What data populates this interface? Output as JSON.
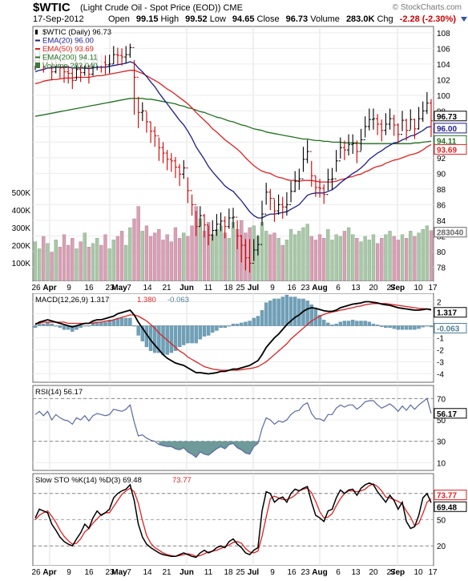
{
  "header": {
    "symbol": "$WTIC",
    "name": "(Light Crude Oil - Spot Price (EOD)) CME",
    "watermark": "© StockCharts.com",
    "date": "17-Sep-2012",
    "open_label": "Open",
    "open": "99.15",
    "high_label": "High",
    "high": "99.52",
    "low_label": "Low",
    "low": "94.65",
    "close_label": "Close",
    "close": "96.73",
    "volume_label": "Volume",
    "volume": "283.0K",
    "chg_label": "Chg",
    "chg": "-2.28 (-2.30%)"
  },
  "colors": {
    "up_bar": "#000000",
    "down_bar": "#cc0000",
    "ema20": "#1c1c8c",
    "ema50": "#dd2222",
    "ema200": "#207020",
    "vol_up": "#a8c8a8",
    "vol_down": "#d8a0b4",
    "macd": "#000000",
    "signal": "#dd2222",
    "hist": "#6fa0b8",
    "rsi": "#5a6aa0",
    "rsi_fill": "#6e9a9a",
    "sto_k": "#000000",
    "sto_d": "#dd2222"
  },
  "x_axis": {
    "labels": [
      "26",
      "Apr",
      "9",
      "16",
      "23",
      "May",
      "7",
      "14",
      "21",
      "Jun",
      "11",
      "18",
      "25",
      "Jul",
      "9",
      "16",
      "23",
      "Aug",
      "6",
      "13",
      "20",
      "27",
      "Sep",
      "10",
      "17"
    ]
  },
  "chart_data": [
    {
      "type": "ohlc",
      "title": "$WTIC (Daily) 96.73",
      "legend": [
        "$WTIC (Daily) 96.73",
        "EMA(20) 96.00",
        "EMA(50) 93.69",
        "EMA(200) 94.11",
        "Volume 283,040"
      ],
      "ylim": [
        76.5,
        108.5
      ],
      "y_ticks": [
        78,
        80,
        82,
        84,
        86,
        88,
        90,
        92,
        94,
        96,
        98,
        100,
        102,
        104,
        106,
        108
      ],
      "y_tick_labels": [
        "78",
        "80",
        "82",
        "84",
        "86",
        "88",
        "90",
        "92",
        "94",
        "96",
        "98",
        "100",
        "102",
        "104",
        "106",
        "108"
      ],
      "price_close": [
        104.4,
        105.1,
        104.2,
        105.3,
        103.0,
        104.1,
        103.5,
        103.0,
        102.8,
        101.9,
        103.3,
        102.9,
        103.8,
        102.7,
        103.9,
        104.4,
        104.2,
        103.9,
        104.0,
        105.2,
        105.1,
        104.9,
        105.2,
        106.1,
        102.3,
        97.8,
        98.0,
        96.6,
        95.4,
        94.8,
        93.3,
        92.6,
        91.8,
        91.6,
        90.8,
        89.9,
        90.7,
        87.8,
        86.0,
        83.2,
        84.6,
        83.4,
        82.1,
        82.7,
        83.5,
        83.9,
        83.2,
        84.3,
        84.4,
        82.0,
        80.8,
        79.2,
        78.5,
        80.2,
        80.9,
        84.8,
        87.6,
        86.8,
        85.2,
        86.0,
        85.7,
        86.0,
        87.7,
        89.0,
        89.3,
        91.8,
        92.8,
        89.7,
        88.2,
        88.1,
        87.3,
        89.2,
        89.3,
        91.6,
        93.3,
        93.0,
        93.7,
        93.8,
        92.8,
        94.3,
        96.0,
        96.9,
        97.0,
        96.3,
        95.5,
        96.3,
        97.0,
        96.2,
        95.0,
        96.8,
        95.5,
        96.9,
        95.7,
        97.0,
        98.0,
        99.0,
        96.73
      ],
      "price_high": [
        105.4,
        106.0,
        105.5,
        106.3,
        104.7,
        105.2,
        104.8,
        104.3,
        104.0,
        103.5,
        104.4,
        104.0,
        105.0,
        103.9,
        105.0,
        105.3,
        105.3,
        105.1,
        105.2,
        106.3,
        106.1,
        106.0,
        106.3,
        106.6,
        104.5,
        99.8,
        99.1,
        97.9,
        96.6,
        96.0,
        94.6,
        94.0,
        93.0,
        92.6,
        92.1,
        91.2,
        91.7,
        89.5,
        87.3,
        85.2,
        85.8,
        84.8,
        83.3,
        84.0,
        84.8,
        85.0,
        84.5,
        85.5,
        85.6,
        84.0,
        82.1,
        81.6,
        81.6,
        81.6,
        82.1,
        86.5,
        88.8,
        88.0,
        86.7,
        87.3,
        87.0,
        87.6,
        89.0,
        90.3,
        90.6,
        93.4,
        94.3,
        91.6,
        89.7,
        89.3,
        88.6,
        90.6,
        90.7,
        93.0,
        94.6,
        94.2,
        95.0,
        95.0,
        94.2,
        95.7,
        97.3,
        98.3,
        98.3,
        97.6,
        96.9,
        97.7,
        98.3,
        97.5,
        96.4,
        98.0,
        97.0,
        98.2,
        97.0,
        98.5,
        99.2,
        100.4,
        99.52
      ],
      "price_low": [
        103.2,
        104.0,
        102.9,
        104.0,
        101.9,
        102.8,
        102.2,
        101.6,
        101.5,
        100.8,
        102.0,
        101.7,
        102.5,
        101.5,
        102.5,
        103.2,
        102.9,
        102.7,
        102.8,
        104.0,
        103.9,
        103.8,
        104.1,
        104.8,
        97.5,
        95.8,
        96.7,
        95.2,
        93.9,
        93.4,
        91.6,
        91.3,
        90.4,
        90.2,
        89.4,
        88.4,
        89.3,
        86.2,
        84.6,
        82.0,
        83.2,
        81.8,
        80.8,
        81.4,
        82.0,
        82.6,
        81.7,
        82.9,
        83.0,
        80.3,
        78.6,
        77.6,
        77.3,
        78.8,
        79.5,
        83.3,
        86.0,
        85.3,
        83.8,
        84.7,
        84.2,
        84.6,
        86.3,
        87.6,
        87.9,
        90.2,
        91.3,
        88.3,
        87.0,
        86.9,
        86.1,
        87.8,
        87.9,
        90.2,
        91.9,
        91.7,
        92.3,
        92.5,
        91.3,
        92.9,
        94.6,
        95.5,
        95.6,
        94.9,
        94.1,
        94.9,
        95.6,
        94.8,
        93.8,
        95.4,
        94.2,
        95.6,
        94.4,
        95.6,
        96.6,
        97.6,
        94.65
      ],
      "ema20": [
        103.0,
        103.2,
        103.3,
        103.5,
        103.5,
        103.6,
        103.6,
        103.6,
        103.6,
        103.5,
        103.5,
        103.5,
        103.5,
        103.4,
        103.5,
        103.6,
        103.6,
        103.6,
        103.7,
        103.8,
        103.9,
        104.0,
        104.1,
        104.3,
        104.1,
        103.5,
        103.0,
        102.4,
        101.7,
        101.1,
        100.3,
        99.6,
        98.9,
        98.2,
        97.5,
        96.8,
        96.2,
        95.4,
        94.5,
        93.4,
        92.6,
        91.8,
        90.9,
        90.2,
        89.6,
        89.0,
        88.4,
        88.0,
        87.7,
        87.1,
        86.5,
        85.8,
        85.1,
        84.6,
        84.3,
        84.3,
        84.6,
        84.8,
        84.8,
        84.9,
        85.0,
        85.1,
        85.4,
        85.7,
        86.0,
        86.6,
        87.2,
        87.4,
        87.5,
        87.5,
        87.5,
        87.7,
        87.9,
        88.3,
        88.8,
        89.2,
        89.6,
        90.0,
        90.3,
        90.7,
        91.2,
        91.8,
        92.2,
        92.6,
        92.9,
        93.3,
        93.6,
        93.9,
        94.0,
        94.3,
        94.5,
        94.8,
        94.9,
        95.2,
        95.5,
        95.9,
        96.0
      ],
      "ema50": [
        101.5,
        101.6,
        101.8,
        101.9,
        102.0,
        102.0,
        102.1,
        102.2,
        102.2,
        102.2,
        102.3,
        102.3,
        102.3,
        102.3,
        102.4,
        102.5,
        102.5,
        102.6,
        102.7,
        102.8,
        102.9,
        103.0,
        103.1,
        103.2,
        103.2,
        103.0,
        102.8,
        102.5,
        102.2,
        101.9,
        101.6,
        101.2,
        100.8,
        100.5,
        100.1,
        99.7,
        99.3,
        98.9,
        98.4,
        97.8,
        97.3,
        96.8,
        96.3,
        95.7,
        95.3,
        94.8,
        94.3,
        93.9,
        93.5,
        93.1,
        92.6,
        92.0,
        91.5,
        91.0,
        90.6,
        90.3,
        90.1,
        90.0,
        89.7,
        89.5,
        89.4,
        89.2,
        89.1,
        89.1,
        89.0,
        89.1,
        89.1,
        89.1,
        89.0,
        88.9,
        88.9,
        88.9,
        88.9,
        89.0,
        89.2,
        89.3,
        89.5,
        89.6,
        89.8,
        89.9,
        90.2,
        90.4,
        90.7,
        90.9,
        91.0,
        91.3,
        91.5,
        91.7,
        91.8,
        92.0,
        92.2,
        92.4,
        92.5,
        92.7,
        93.0,
        93.4,
        93.69
      ],
      "ema200": [
        97.3,
        97.4,
        97.5,
        97.6,
        97.7,
        97.8,
        97.9,
        98.0,
        98.1,
        98.2,
        98.3,
        98.4,
        98.5,
        98.6,
        98.7,
        98.8,
        98.9,
        99.0,
        99.1,
        99.2,
        99.3,
        99.4,
        99.5,
        99.6,
        99.6,
        99.6,
        99.6,
        99.5,
        99.5,
        99.4,
        99.3,
        99.2,
        99.1,
        99.0,
        98.9,
        98.7,
        98.6,
        98.4,
        98.3,
        98.1,
        97.9,
        97.8,
        97.6,
        97.4,
        97.2,
        97.1,
        96.9,
        96.7,
        96.6,
        96.4,
        96.2,
        96.1,
        95.9,
        95.7,
        95.6,
        95.5,
        95.3,
        95.2,
        95.1,
        95.0,
        94.9,
        94.8,
        94.7,
        94.6,
        94.5,
        94.4,
        94.4,
        94.3,
        94.2,
        94.2,
        94.1,
        94.1,
        94.0,
        94.0,
        94.0,
        93.9,
        93.9,
        93.9,
        93.9,
        93.8,
        93.8,
        93.8,
        93.8,
        93.8,
        93.8,
        93.8,
        93.8,
        93.8,
        93.8,
        93.8,
        93.8,
        93.8,
        93.9,
        93.9,
        94.0,
        94.05,
        94.11
      ],
      "volume_k": [
        220,
        180,
        250,
        210,
        160,
        230,
        190,
        260,
        200,
        240,
        180,
        220,
        270,
        190,
        210,
        240,
        200,
        260,
        180,
        230,
        250,
        280,
        200,
        300,
        350,
        420,
        280,
        310,
        250,
        270,
        290,
        230,
        260,
        220,
        300,
        240,
        270,
        250,
        310,
        420,
        350,
        280,
        330,
        260,
        290,
        310,
        270,
        240,
        330,
        290,
        340,
        270,
        300,
        310,
        250,
        330,
        280,
        260,
        270,
        240,
        200,
        230,
        290,
        260,
        280,
        300,
        320,
        250,
        230,
        260,
        240,
        290,
        230,
        260,
        250,
        280,
        300,
        260,
        240,
        220,
        250,
        230,
        260,
        210,
        240,
        260,
        280,
        250,
        230,
        260,
        240,
        280,
        250,
        270,
        290,
        310,
        283
      ],
      "volume_ticks": [
        100,
        200,
        300,
        400,
        500
      ],
      "volume_tick_labels": [
        "100K",
        "200K",
        "300K",
        "400K",
        "500K"
      ]
    },
    {
      "type": "line",
      "title": "MACD(12,26,9)",
      "legend": [
        "MACD(12,26,9) 1.317",
        "1.380",
        "-0.063"
      ],
      "ylim": [
        -4.5,
        2.5
      ],
      "y_ticks": [
        -4,
        -3,
        -2,
        -1,
        0,
        1,
        2
      ],
      "y_tick_labels": [
        "-4",
        "-3",
        "-2",
        "-1",
        "0",
        "1",
        "2"
      ],
      "macd": [
        0.1,
        0.3,
        0.4,
        0.5,
        0.4,
        0.3,
        0.2,
        0.1,
        0.0,
        -0.1,
        0.0,
        0.1,
        0.2,
        0.2,
        0.4,
        0.5,
        0.5,
        0.6,
        0.7,
        0.8,
        1.0,
        1.1,
        1.2,
        1.3,
        0.9,
        0.3,
        -0.2,
        -0.7,
        -1.2,
        -1.6,
        -2.0,
        -2.4,
        -2.7,
        -2.9,
        -3.1,
        -3.2,
        -3.3,
        -3.5,
        -3.7,
        -3.9,
        -3.9,
        -3.95,
        -4.0,
        -3.95,
        -3.9,
        -3.8,
        -3.8,
        -3.7,
        -3.6,
        -3.6,
        -3.5,
        -3.4,
        -3.3,
        -3.1,
        -2.9,
        -2.4,
        -1.8,
        -1.4,
        -1.0,
        -0.7,
        -0.3,
        0.1,
        0.4,
        0.7,
        0.9,
        1.2,
        1.4,
        1.5,
        1.45,
        1.35,
        1.25,
        1.2,
        1.2,
        1.3,
        1.5,
        1.6,
        1.7,
        1.8,
        1.85,
        1.9,
        2.0,
        2.0,
        1.95,
        1.9,
        1.8,
        1.75,
        1.7,
        1.6,
        1.5,
        1.45,
        1.4,
        1.35,
        1.3,
        1.3,
        1.35,
        1.4,
        1.317
      ],
      "signal": [
        0.2,
        0.2,
        0.3,
        0.3,
        0.3,
        0.3,
        0.3,
        0.3,
        0.2,
        0.2,
        0.2,
        0.2,
        0.2,
        0.2,
        0.2,
        0.3,
        0.3,
        0.4,
        0.4,
        0.5,
        0.6,
        0.7,
        0.8,
        0.9,
        0.9,
        0.8,
        0.6,
        0.4,
        0.1,
        -0.2,
        -0.6,
        -0.9,
        -1.2,
        -1.5,
        -1.8,
        -2.1,
        -2.3,
        -2.6,
        -2.8,
        -3.0,
        -3.2,
        -3.4,
        -3.5,
        -3.6,
        -3.65,
        -3.7,
        -3.7,
        -3.7,
        -3.7,
        -3.7,
        -3.65,
        -3.6,
        -3.55,
        -3.5,
        -3.4,
        -3.2,
        -3.0,
        -2.7,
        -2.4,
        -2.1,
        -1.8,
        -1.5,
        -1.1,
        -0.8,
        -0.5,
        -0.2,
        0.1,
        0.4,
        0.6,
        0.8,
        0.95,
        1.05,
        1.15,
        1.2,
        1.3,
        1.35,
        1.45,
        1.5,
        1.6,
        1.65,
        1.75,
        1.8,
        1.85,
        1.85,
        1.85,
        1.85,
        1.8,
        1.75,
        1.7,
        1.65,
        1.6,
        1.55,
        1.5,
        1.45,
        1.42,
        1.4,
        1.38
      ]
    },
    {
      "type": "line",
      "title": "RSI(14)",
      "legend": [
        "RSI(14) 56.17"
      ],
      "ylim": [
        5,
        80
      ],
      "y_ticks": [
        10,
        30,
        50,
        70
      ],
      "y_tick_labels": [
        "10",
        "30",
        "50",
        "70"
      ],
      "ref_lines": [
        30,
        70
      ],
      "rsi": [
        55,
        58,
        54,
        58,
        50,
        55,
        52,
        50,
        49,
        46,
        52,
        50,
        54,
        49,
        54,
        56,
        55,
        54,
        55,
        60,
        59,
        58,
        60,
        64,
        48,
        35,
        36,
        33,
        31,
        30,
        27,
        26,
        25,
        25,
        23,
        22,
        24,
        20,
        18,
        15,
        20,
        18,
        17,
        20,
        23,
        25,
        23,
        27,
        28,
        24,
        22,
        19,
        18,
        25,
        28,
        42,
        52,
        50,
        46,
        49,
        48,
        50,
        55,
        58,
        59,
        64,
        66,
        56,
        51,
        51,
        49,
        55,
        55,
        61,
        64,
        62,
        64,
        64,
        60,
        63,
        67,
        68,
        68,
        64,
        61,
        63,
        65,
        62,
        58,
        63,
        59,
        64,
        60,
        64,
        67,
        70,
        56.17
      ]
    },
    {
      "type": "line",
      "title": "Slow STO %K(14) %D(3)",
      "legend": [
        "Slow STO %K(14) %D(3) 69.48",
        "73.77"
      ],
      "ylim": [
        0,
        100
      ],
      "y_ticks": [
        20,
        50,
        80
      ],
      "y_tick_labels": [
        "20",
        "50",
        "80"
      ],
      "ref_lines": [
        20,
        80
      ],
      "sto_k": [
        52,
        62,
        60,
        58,
        45,
        38,
        30,
        25,
        22,
        20,
        28,
        35,
        45,
        40,
        52,
        60,
        55,
        58,
        62,
        75,
        80,
        83,
        85,
        90,
        72,
        45,
        30,
        22,
        18,
        15,
        12,
        10,
        9,
        8,
        8,
        10,
        12,
        10,
        8,
        7,
        12,
        15,
        12,
        14,
        18,
        20,
        18,
        25,
        28,
        22,
        18,
        12,
        10,
        15,
        18,
        60,
        82,
        80,
        70,
        74,
        76,
        70,
        80,
        85,
        83,
        86,
        88,
        70,
        55,
        52,
        48,
        60,
        62,
        75,
        84,
        80,
        84,
        85,
        78,
        86,
        90,
        92,
        90,
        82,
        76,
        70,
        78,
        72,
        62,
        70,
        48,
        40,
        42,
        55,
        75,
        80,
        69.48
      ],
      "sto_d": [
        50,
        55,
        58,
        60,
        54,
        47,
        38,
        31,
        26,
        22,
        23,
        28,
        36,
        40,
        46,
        51,
        56,
        58,
        58,
        65,
        72,
        79,
        83,
        86,
        82,
        69,
        49,
        32,
        23,
        18,
        15,
        12,
        10,
        9,
        8,
        9,
        10,
        11,
        10,
        8,
        9,
        11,
        13,
        14,
        15,
        17,
        19,
        21,
        24,
        25,
        23,
        17,
        13,
        12,
        14,
        31,
        53,
        74,
        77,
        75,
        73,
        73,
        75,
        78,
        83,
        85,
        86,
        81,
        71,
        59,
        52,
        53,
        57,
        66,
        74,
        80,
        83,
        83,
        82,
        83,
        85,
        89,
        91,
        88,
        83,
        76,
        75,
        73,
        71,
        68,
        60,
        53,
        43,
        46,
        57,
        70,
        73.77
      ]
    }
  ],
  "panel_labels": {
    "price_last": "96.73",
    "ema20_last": "96.00",
    "ema200_last": "94.11",
    "ema50_last": "93.69",
    "volume_last": "283040",
    "macd_last": "1.317",
    "macd_hist_last": "-0.063",
    "rsi_last": "56.17",
    "sto_k_last": "69.48",
    "sto_d_last": "73.77"
  }
}
